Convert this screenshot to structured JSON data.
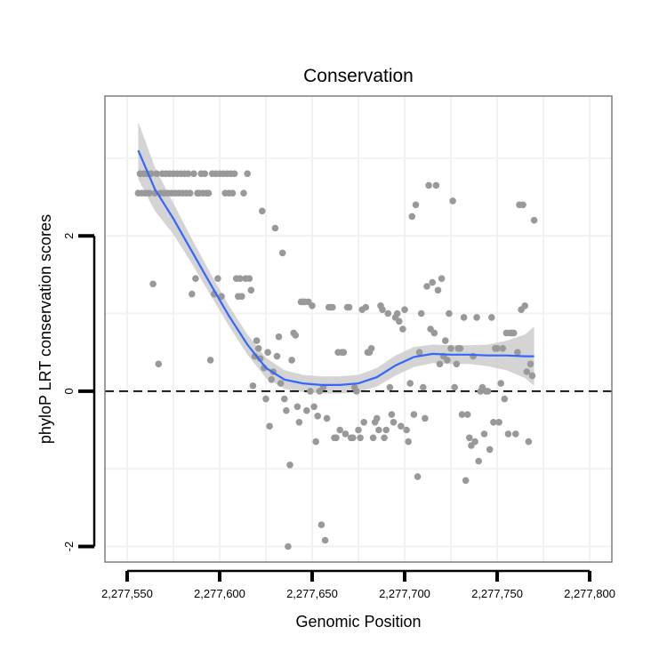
{
  "chart_data": {
    "type": "scatter",
    "title": "Conservation",
    "xlabel": "Genomic Position",
    "ylabel": "phyloP LRT conservation scores",
    "xlim": [
      2277538,
      2277812
    ],
    "ylim": [
      -2.2,
      3.8
    ],
    "x_ticks": [
      2277550,
      2277600,
      2277650,
      2277700,
      2277750,
      2277800
    ],
    "x_tick_labels": [
      "2,277,550",
      "2,277,600",
      "2,277,650",
      "2,277,700",
      "2,277,750",
      "2,277,800"
    ],
    "y_ticks": [
      -2,
      0,
      2
    ],
    "y_tick_labels": [
      "-2",
      "0",
      "2"
    ],
    "reference_line": {
      "y": 0,
      "style": "dashed"
    },
    "grid": true,
    "colors": {
      "points": "#999999",
      "smooth": "#3366ff",
      "ribbon": "#cccccc",
      "grid": "#f2f2f2",
      "panel_border": "#7f7f7f"
    },
    "points": [
      [
        2277556,
        2.55
      ],
      [
        2277557,
        2.8
      ],
      [
        2277558,
        2.55
      ],
      [
        2277559,
        2.8
      ],
      [
        2277560,
        2.55
      ],
      [
        2277561,
        2.8
      ],
      [
        2277562,
        2.55
      ],
      [
        2277563,
        2.8
      ],
      [
        2277564,
        1.38
      ],
      [
        2277565,
        2.55
      ],
      [
        2277566,
        2.8
      ],
      [
        2277567,
        0.35
      ],
      [
        2277568,
        2.55
      ],
      [
        2277569,
        2.8
      ],
      [
        2277570,
        2.55
      ],
      [
        2277571,
        2.8
      ],
      [
        2277572,
        2.55
      ],
      [
        2277573,
        2.8
      ],
      [
        2277574,
        2.55
      ],
      [
        2277575,
        2.8
      ],
      [
        2277576,
        2.55
      ],
      [
        2277577,
        2.8
      ],
      [
        2277578,
        2.55
      ],
      [
        2277579,
        2.8
      ],
      [
        2277580,
        2.55
      ],
      [
        2277581,
        2.8
      ],
      [
        2277582,
        2.55
      ],
      [
        2277583,
        2.8
      ],
      [
        2277584,
        2.55
      ],
      [
        2277585,
        1.25
      ],
      [
        2277586,
        2.8
      ],
      [
        2277587,
        1.45
      ],
      [
        2277588,
        2.55
      ],
      [
        2277589,
        2.55
      ],
      [
        2277590,
        2.8
      ],
      [
        2277591,
        2.55
      ],
      [
        2277592,
        2.8
      ],
      [
        2277593,
        2.55
      ],
      [
        2277594,
        2.55
      ],
      [
        2277595,
        0.4
      ],
      [
        2277596,
        2.8
      ],
      [
        2277597,
        1.25
      ],
      [
        2277598,
        2.8
      ],
      [
        2277599,
        1.45
      ],
      [
        2277600,
        2.8
      ],
      [
        2277601,
        1.22
      ],
      [
        2277602,
        2.8
      ],
      [
        2277603,
        2.55
      ],
      [
        2277604,
        2.8
      ],
      [
        2277605,
        2.55
      ],
      [
        2277606,
        2.8
      ],
      [
        2277607,
        2.55
      ],
      [
        2277608,
        2.8
      ],
      [
        2277609,
        1.45
      ],
      [
        2277610,
        1.22
      ],
      [
        2277611,
        1.45
      ],
      [
        2277612,
        1.22
      ],
      [
        2277613,
        2.55
      ],
      [
        2277614,
        1.45
      ],
      [
        2277615,
        2.8
      ],
      [
        2277616,
        1.45
      ],
      [
        2277617,
        1.3
      ],
      [
        2277618,
        0.07
      ],
      [
        2277619,
        0.45
      ],
      [
        2277620,
        0.65
      ],
      [
        2277621,
        0.55
      ],
      [
        2277622,
        0.42
      ],
      [
        2277623,
        2.32
      ],
      [
        2277624,
        0.3
      ],
      [
        2277625,
        -0.1
      ],
      [
        2277626,
        0.5
      ],
      [
        2277627,
        -0.45
      ],
      [
        2277628,
        0.15
      ],
      [
        2277629,
        0.25
      ],
      [
        2277630,
        2.1
      ],
      [
        2277631,
        0.45
      ],
      [
        2277632,
        0.7
      ],
      [
        2277633,
        0.1
      ],
      [
        2277634,
        1.78
      ],
      [
        2277635,
        -0.1
      ],
      [
        2277636,
        -0.25
      ],
      [
        2277637,
        -2.0
      ],
      [
        2277638,
        -0.95
      ],
      [
        2277639,
        0.4
      ],
      [
        2277640,
        0.75
      ],
      [
        2277641,
        0.72
      ],
      [
        2277642,
        -0.2
      ],
      [
        2277643,
        -0.4
      ],
      [
        2277644,
        1.15
      ],
      [
        2277645,
        1.15
      ],
      [
        2277646,
        1.15
      ],
      [
        2277647,
        -0.25
      ],
      [
        2277648,
        1.15
      ],
      [
        2277649,
        0.0
      ],
      [
        2277650,
        1.1
      ],
      [
        2277651,
        -0.2
      ],
      [
        2277652,
        -0.65
      ],
      [
        2277653,
        -0.32
      ],
      [
        2277654,
        0.0
      ],
      [
        2277655,
        -1.72
      ],
      [
        2277656,
        0.05
      ],
      [
        2277657,
        -1.92
      ],
      [
        2277658,
        -0.35
      ],
      [
        2277659,
        1.08
      ],
      [
        2277660,
        1.08
      ],
      [
        2277661,
        1.08
      ],
      [
        2277662,
        -0.6
      ],
      [
        2277663,
        -0.6
      ],
      [
        2277664,
        0.5
      ],
      [
        2277665,
        -0.5
      ],
      [
        2277666,
        0.5
      ],
      [
        2277667,
        0.5
      ],
      [
        2277668,
        -0.55
      ],
      [
        2277669,
        1.08
      ],
      [
        2277670,
        1.08
      ],
      [
        2277671,
        -0.6
      ],
      [
        2277672,
        -0.6
      ],
      [
        2277673,
        0.05
      ],
      [
        2277674,
        0.0
      ],
      [
        2277675,
        -0.5
      ],
      [
        2277676,
        -0.6
      ],
      [
        2277677,
        1.05
      ],
      [
        2277678,
        -0.4
      ],
      [
        2277679,
        1.08
      ],
      [
        2277680,
        0.5
      ],
      [
        2277681,
        0.5
      ],
      [
        2277682,
        0.55
      ],
      [
        2277683,
        -0.6
      ],
      [
        2277684,
        -0.4
      ],
      [
        2277685,
        -0.35
      ],
      [
        2277686,
        -0.5
      ],
      [
        2277687,
        1.1
      ],
      [
        2277688,
        1.05
      ],
      [
        2277689,
        -0.6
      ],
      [
        2277690,
        -0.5
      ],
      [
        2277691,
        1.0
      ],
      [
        2277692,
        0.05
      ],
      [
        2277693,
        -0.3
      ],
      [
        2277694,
        -0.4
      ],
      [
        2277695,
        0.95
      ],
      [
        2277696,
        1.0
      ],
      [
        2277697,
        0.9
      ],
      [
        2277698,
        -0.45
      ],
      [
        2277699,
        0.8
      ],
      [
        2277700,
        1.05
      ],
      [
        2277701,
        -0.5
      ],
      [
        2277702,
        -0.65
      ],
      [
        2277703,
        0.1
      ],
      [
        2277704,
        2.25
      ],
      [
        2277705,
        -0.3
      ],
      [
        2277706,
        2.4
      ],
      [
        2277707,
        -1.1
      ],
      [
        2277708,
        0.5
      ],
      [
        2277709,
        1.0
      ],
      [
        2277710,
        0.05
      ],
      [
        2277711,
        -0.35
      ],
      [
        2277712,
        1.35
      ],
      [
        2277713,
        2.65
      ],
      [
        2277714,
        0.8
      ],
      [
        2277715,
        1.4
      ],
      [
        2277716,
        0.75
      ],
      [
        2277717,
        2.65
      ],
      [
        2277718,
        1.3
      ],
      [
        2277719,
        0.35
      ],
      [
        2277720,
        1.45
      ],
      [
        2277721,
        0.45
      ],
      [
        2277722,
        0.65
      ],
      [
        2277723,
        0.4
      ],
      [
        2277724,
        1.0
      ],
      [
        2277725,
        0.55
      ],
      [
        2277726,
        2.45
      ],
      [
        2277727,
        0.05
      ],
      [
        2277728,
        0.35
      ],
      [
        2277729,
        0.55
      ],
      [
        2277730,
        0.55
      ],
      [
        2277731,
        -0.3
      ],
      [
        2277732,
        0.95
      ],
      [
        2277733,
        -1.15
      ],
      [
        2277734,
        -0.3
      ],
      [
        2277735,
        -0.6
      ],
      [
        2277736,
        -0.7
      ],
      [
        2277737,
        0.45
      ],
      [
        2277738,
        -0.65
      ],
      [
        2277739,
        0.95
      ],
      [
        2277740,
        -0.9
      ],
      [
        2277741,
        0.0
      ],
      [
        2277742,
        0.05
      ],
      [
        2277743,
        -0.55
      ],
      [
        2277744,
        0.0
      ],
      [
        2277745,
        0.0
      ],
      [
        2277746,
        -0.75
      ],
      [
        2277747,
        0.95
      ],
      [
        2277748,
        -0.4
      ],
      [
        2277749,
        0.55
      ],
      [
        2277750,
        0.55
      ],
      [
        2277751,
        -0.4
      ],
      [
        2277752,
        0.1
      ],
      [
        2277753,
        0.55
      ],
      [
        2277754,
        -0.1
      ],
      [
        2277755,
        0.75
      ],
      [
        2277756,
        -0.55
      ],
      [
        2277757,
        0.75
      ],
      [
        2277758,
        0.75
      ],
      [
        2277759,
        0.75
      ],
      [
        2277760,
        -0.55
      ],
      [
        2277761,
        0.5
      ],
      [
        2277762,
        2.4
      ],
      [
        2277763,
        1.05
      ],
      [
        2277764,
        2.4
      ],
      [
        2277765,
        1.1
      ],
      [
        2277766,
        0.25
      ],
      [
        2277767,
        -0.65
      ],
      [
        2277768,
        0.35
      ],
      [
        2277769,
        0.2
      ],
      [
        2277770,
        2.2
      ]
    ],
    "smooth": [
      [
        2277556,
        3.1
      ],
      [
        2277565,
        2.6
      ],
      [
        2277575,
        2.22
      ],
      [
        2277585,
        1.8
      ],
      [
        2277595,
        1.38
      ],
      [
        2277605,
        0.97
      ],
      [
        2277615,
        0.6
      ],
      [
        2277625,
        0.3
      ],
      [
        2277635,
        0.15
      ],
      [
        2277645,
        0.1
      ],
      [
        2277655,
        0.08
      ],
      [
        2277665,
        0.08
      ],
      [
        2277675,
        0.1
      ],
      [
        2277685,
        0.18
      ],
      [
        2277695,
        0.33
      ],
      [
        2277705,
        0.44
      ],
      [
        2277715,
        0.48
      ],
      [
        2277725,
        0.47
      ],
      [
        2277735,
        0.47
      ],
      [
        2277745,
        0.46
      ],
      [
        2277755,
        0.46
      ],
      [
        2277765,
        0.45
      ],
      [
        2277770,
        0.45
      ]
    ],
    "ribbon_halfwidth": [
      0.37,
      0.28,
      0.2,
      0.16,
      0.14,
      0.13,
      0.13,
      0.13,
      0.12,
      0.11,
      0.11,
      0.11,
      0.11,
      0.12,
      0.13,
      0.13,
      0.12,
      0.12,
      0.12,
      0.14,
      0.19,
      0.28,
      0.38
    ]
  }
}
